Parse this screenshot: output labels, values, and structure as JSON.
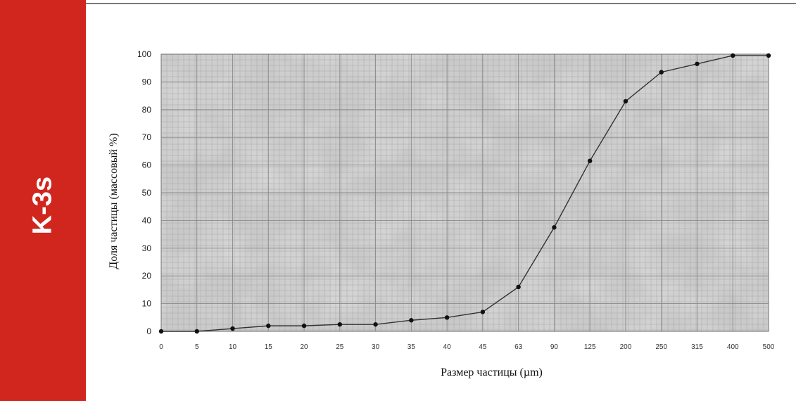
{
  "side_label": "K-3s",
  "colors": {
    "band": "#d0261e",
    "line": "#333333",
    "marker": "#111111",
    "plot_bg": "#c9c9c9"
  },
  "chart_data": {
    "type": "line",
    "title": "",
    "xlabel": "Размер частицы (µm)",
    "ylabel": "Доля частицы (массовый %)",
    "ylim": [
      0,
      100
    ],
    "yticks": [
      0,
      10,
      20,
      30,
      40,
      50,
      60,
      70,
      80,
      90,
      100
    ],
    "grid": true,
    "categories": [
      "0",
      "5",
      "10",
      "15",
      "20",
      "25",
      "30",
      "35",
      "40",
      "45",
      "63",
      "90",
      "125",
      "200",
      "250",
      "315",
      "400",
      "500"
    ],
    "series": [
      {
        "values": [
          0,
          0,
          1,
          2,
          2,
          2.5,
          2.5,
          4,
          5,
          7,
          16,
          37.5,
          61.5,
          83,
          93.5,
          96.5,
          99.5,
          99.5
        ]
      }
    ]
  }
}
